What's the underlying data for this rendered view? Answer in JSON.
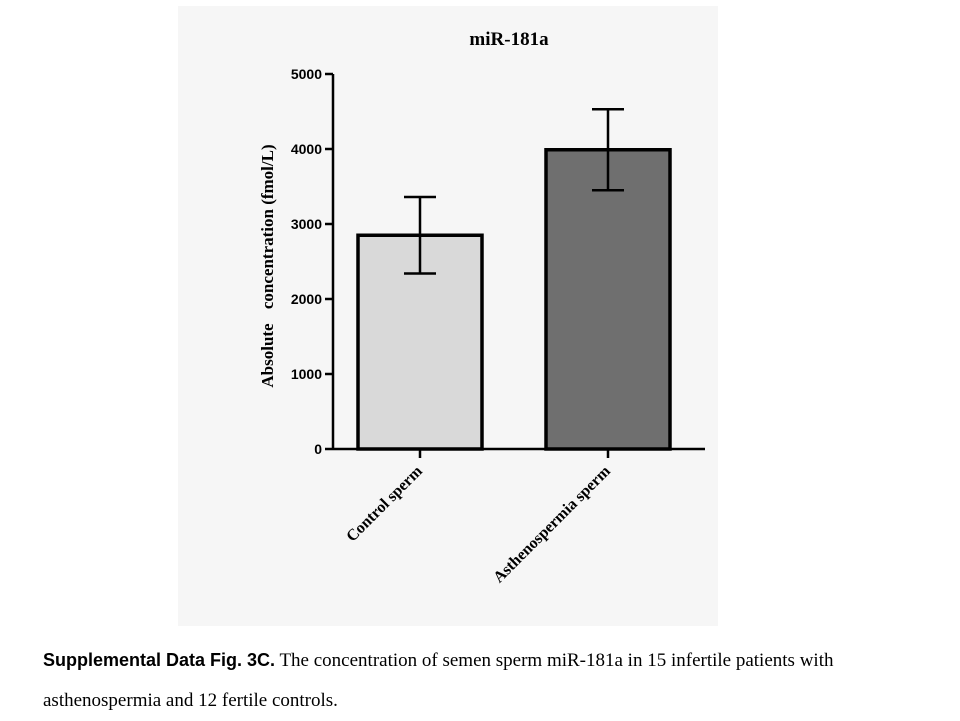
{
  "chart_data": {
    "type": "bar",
    "title": "miR-181a",
    "ylabel": "Absolute concentration (fmol/L)",
    "xlabel": "",
    "categories": [
      "Control sperm",
      "Asthenospermia sperm"
    ],
    "values": [
      2850,
      3990
    ],
    "error": [
      510,
      540
    ],
    "ylim": [
      0,
      5000
    ],
    "yticks": [
      0,
      1000,
      2000,
      3000,
      4000,
      5000
    ],
    "bar_colors": [
      "#d9d9d9",
      "#6f6f6f"
    ],
    "grid": false,
    "legend": "none"
  },
  "main": {
    "ylabel_prefix": "Absolute",
    "ylabel_rest": "concentration (fmol/L)"
  },
  "caption": {
    "label": "Supplemental Data Fig. 3C.",
    "text": " The concentration of semen sperm miR-181a in 15  infertile patients with asthenospermia and 12 fertile controls."
  }
}
